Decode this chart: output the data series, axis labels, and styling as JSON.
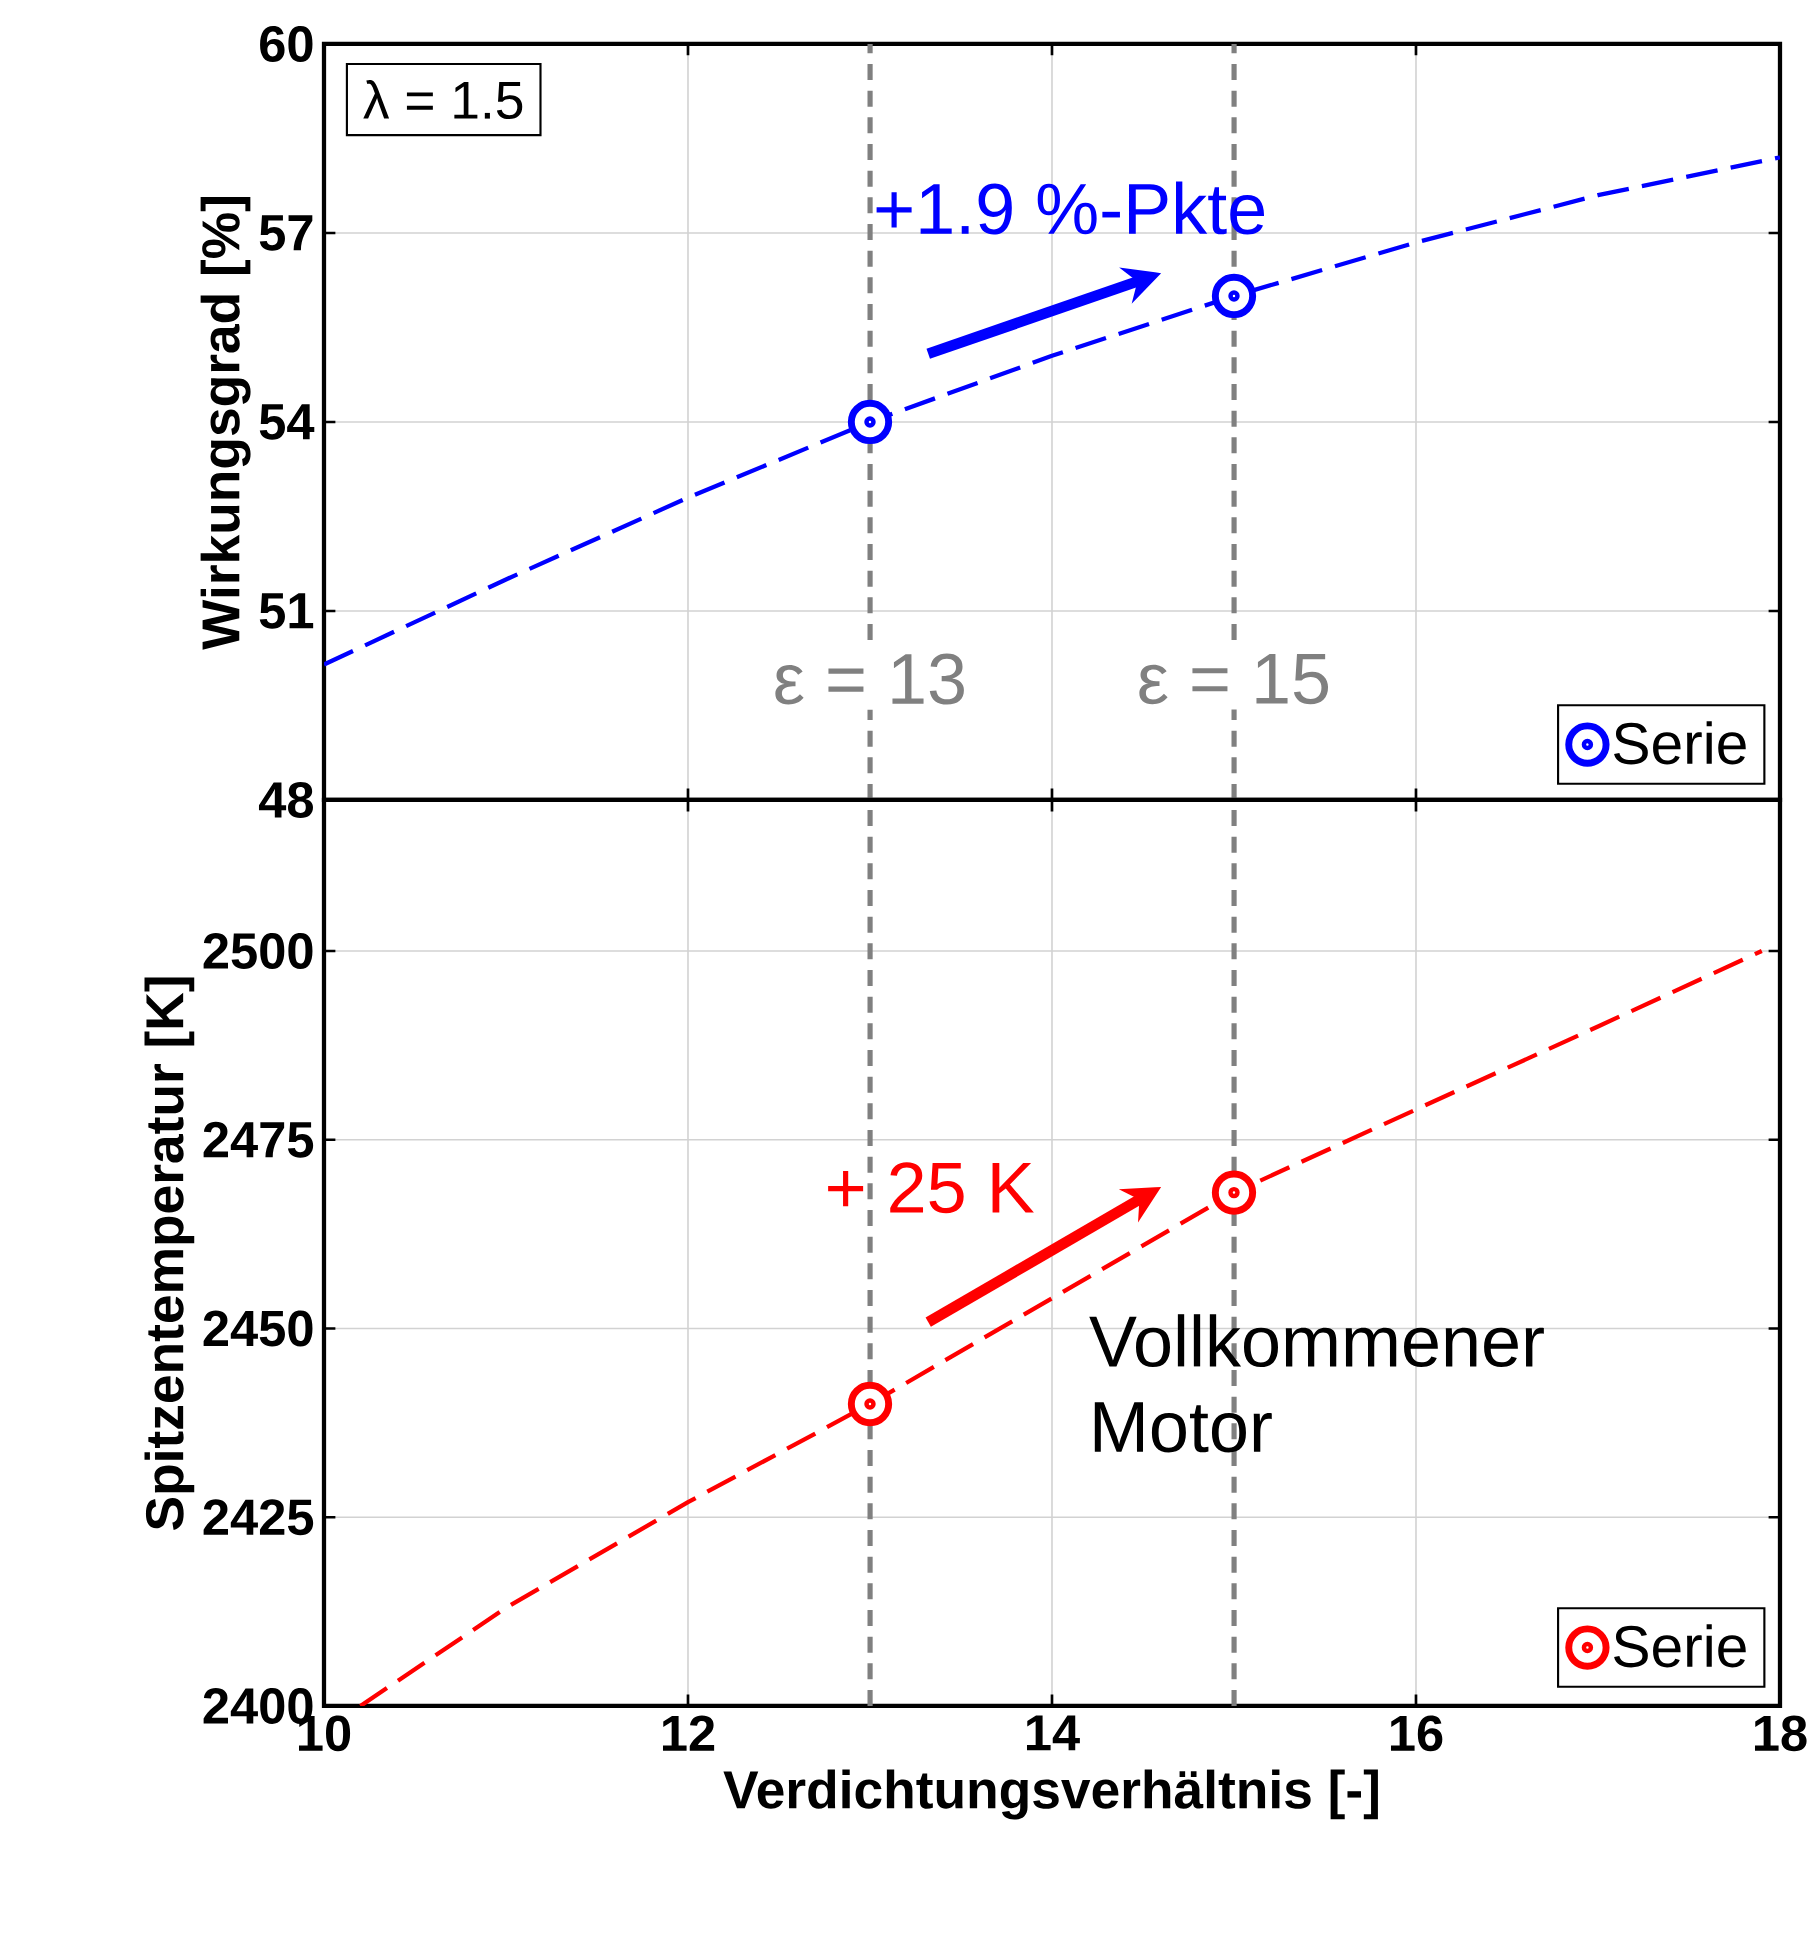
{
  "chart_data": [
    {
      "type": "line",
      "ylabel": "Wirkungsgrad [%]",
      "xlim": [
        10,
        18
      ],
      "xticks": [
        10,
        12,
        14,
        16,
        18
      ],
      "ylim": [
        48,
        60
      ],
      "yticks": [
        48,
        51,
        54,
        57,
        60
      ],
      "tick_labels": "y",
      "grid": true,
      "legend": "bottom right",
      "series": [
        {
          "color": "#0000ff",
          "line_style": "dashed",
          "marker": "none",
          "x": [
            10,
            11,
            12,
            13,
            14,
            15,
            16,
            17,
            18
          ],
          "values": [
            50.15,
            51.5,
            52.8,
            54.0,
            55.05,
            56.0,
            56.85,
            57.6,
            58.2
          ]
        },
        {
          "type": "scatter",
          "name": "Serie",
          "color": "#0000ff",
          "marker": "circle",
          "x": [
            13,
            15
          ],
          "values": [
            54.0,
            56.0
          ]
        }
      ],
      "ref_lines": [
        {
          "axis": "x",
          "value": 13,
          "label": "ε = 13",
          "color": "#808080",
          "line_style": "dashed"
        },
        {
          "axis": "x",
          "value": 15,
          "label": "ε = 15",
          "color": "#808080",
          "line_style": "dashed"
        }
      ],
      "annotations": [
        "λ = 1.5",
        "+1.9 %-Pkte"
      ]
    },
    {
      "type": "line",
      "xlabel": "Verdichtungsverhältnis [-]",
      "ylabel": "Spitzentemperatur [K]",
      "xlim": [
        10,
        18
      ],
      "xticks": [
        10,
        12,
        14,
        16,
        18
      ],
      "ylim": [
        2400,
        2520
      ],
      "yticks": [
        2400,
        2425,
        2450,
        2475,
        2500
      ],
      "grid": true,
      "legend": "bottom right",
      "series": [
        {
          "color": "#ff0000",
          "line_style": "dashed",
          "marker": "none",
          "x": [
            10.2,
            11,
            12,
            13,
            14,
            15,
            16,
            17,
            17.9
          ],
          "values": [
            2400,
            2413,
            2427,
            2440,
            2454,
            2468,
            2479,
            2490,
            2500
          ]
        },
        {
          "type": "scatter",
          "name": "Serie",
          "color": "#ff0000",
          "marker": "circle",
          "x": [
            13,
            15
          ],
          "values": [
            2440,
            2468
          ]
        }
      ],
      "ref_lines": [
        {
          "axis": "x",
          "value": 13,
          "color": "#808080",
          "line_style": "dashed"
        },
        {
          "axis": "x",
          "value": 15,
          "color": "#808080",
          "line_style": "dashed"
        }
      ],
      "annotations": [
        "+ 25 K",
        "Vollkommener Motor"
      ]
    }
  ]
}
